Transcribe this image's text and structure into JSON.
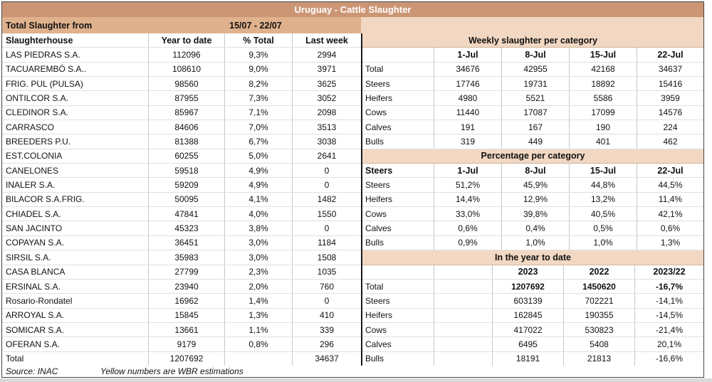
{
  "title": "Uruguay - Cattle Slaughter",
  "subheader": {
    "label": "Total Slaughter from",
    "period": "15/07 - 22/07"
  },
  "left_table": {
    "headers": [
      "Slaughterhouse",
      "Year to date",
      "% Total",
      "Last week"
    ],
    "rows": [
      {
        "name": "LAS PIEDRAS S.A.",
        "ytd": "112096",
        "pct": "9,3%",
        "last": "2994"
      },
      {
        "name": "TACUAREMBÓ S.A..",
        "ytd": "108610",
        "pct": "9,0%",
        "last": "3971"
      },
      {
        "name": "FRIG. PUL (PULSA)",
        "ytd": "98560",
        "pct": "8,2%",
        "last": "3625"
      },
      {
        "name": "ONTILCOR S.A.",
        "ytd": "87955",
        "pct": "7,3%",
        "last": "3052"
      },
      {
        "name": "CLEDINOR S.A.",
        "ytd": "85967",
        "pct": "7,1%",
        "last": "2098"
      },
      {
        "name": "CARRASCO",
        "ytd": "84606",
        "pct": "7,0%",
        "last": "3513"
      },
      {
        "name": "BREEDERS P.U.",
        "ytd": "81388",
        "pct": "6,7%",
        "last": "3038"
      },
      {
        "name": "EST.COLONIA",
        "ytd": "60255",
        "pct": "5,0%",
        "last": "2641"
      },
      {
        "name": "CANELONES",
        "ytd": "59518",
        "pct": "4,9%",
        "last": "0"
      },
      {
        "name": "INALER S.A.",
        "ytd": "59209",
        "pct": "4,9%",
        "last": "0"
      },
      {
        "name": "BILACOR S.A.FRIG.",
        "ytd": "50095",
        "pct": "4,1%",
        "last": "1482"
      },
      {
        "name": "CHIADEL S.A.",
        "ytd": "47841",
        "pct": "4,0%",
        "last": "1550"
      },
      {
        "name": "SAN JACINTO",
        "ytd": "45323",
        "pct": "3,8%",
        "last": "0"
      },
      {
        "name": "COPAYAN S.A.",
        "ytd": "36451",
        "pct": "3,0%",
        "last": "1184"
      },
      {
        "name": "SIRSIL S.A.",
        "ytd": "35983",
        "pct": "3,0%",
        "last": "1508"
      },
      {
        "name": "CASA BLANCA",
        "ytd": "27799",
        "pct": "2,3%",
        "last": "1035"
      },
      {
        "name": "ERSINAL S.A.",
        "ytd": "23940",
        "pct": "2,0%",
        "last": "760"
      },
      {
        "name": "Rosario-Rondatel",
        "ytd": "16962",
        "pct": "1,4%",
        "last": "0"
      },
      {
        "name": "ARROYAL S.A.",
        "ytd": "15845",
        "pct": "1,3%",
        "last": "410"
      },
      {
        "name": "SOMICAR S.A.",
        "ytd": "13661",
        "pct": "1,1%",
        "last": "339"
      },
      {
        "name": "OFERAN S.A.",
        "ytd": "9179",
        "pct": "0,8%",
        "last": "296"
      }
    ],
    "total": {
      "name": "Total",
      "ytd": "1207692",
      "pct": "",
      "last": "34637"
    }
  },
  "right_tables": {
    "weekly": {
      "title": "Weekly slaughter per category",
      "col_headers": [
        "",
        "1-Jul",
        "8-Jul",
        "15-Jul",
        "22-Jul"
      ],
      "rows": [
        {
          "label": "Total",
          "values": [
            "34676",
            "42955",
            "42168",
            "34637"
          ]
        },
        {
          "label": "Steers",
          "values": [
            "17746",
            "19731",
            "18892",
            "15416"
          ]
        },
        {
          "label": "Heifers",
          "values": [
            "4980",
            "5521",
            "5586",
            "3959"
          ]
        },
        {
          "label": "Cows",
          "values": [
            "11440",
            "17087",
            "17099",
            "14576"
          ]
        },
        {
          "label": "Calves",
          "values": [
            "191",
            "167",
            "190",
            "224"
          ]
        },
        {
          "label": "Bulls",
          "values": [
            "319",
            "449",
            "401",
            "462"
          ]
        }
      ]
    },
    "percentage": {
      "title": "Percentage per category",
      "col_headers": [
        "Steers",
        "1-Jul",
        "8-Jul",
        "15-Jul",
        "22-Jul"
      ],
      "rows": [
        {
          "label": "Steers",
          "values": [
            "51,2%",
            "45,9%",
            "44,8%",
            "44,5%"
          ]
        },
        {
          "label": "Heifers",
          "values": [
            "14,4%",
            "12,9%",
            "13,2%",
            "11,4%"
          ]
        },
        {
          "label": "Cows",
          "values": [
            "33,0%",
            "39,8%",
            "40,5%",
            "42,1%"
          ]
        },
        {
          "label": "Calves",
          "values": [
            "0,6%",
            "0,4%",
            "0,5%",
            "0,6%"
          ]
        },
        {
          "label": "Bulls",
          "values": [
            "0,9%",
            "1,0%",
            "1,0%",
            "1,3%"
          ]
        }
      ]
    },
    "year_to_date": {
      "title": "In the year to date",
      "col_headers": [
        "",
        "",
        "2023",
        "2022",
        "2023/22"
      ],
      "rows": [
        {
          "label": "Total",
          "values": [
            "1207692",
            "1450620",
            "-16,7%"
          ],
          "bold": true
        },
        {
          "label": "Steers",
          "values": [
            "603139",
            "702221",
            "-14,1%"
          ]
        },
        {
          "label": "Heifers",
          "values": [
            "162845",
            "190355",
            "-14,5%"
          ]
        },
        {
          "label": "Cows",
          "values": [
            "417022",
            "530823",
            "-21,4%"
          ]
        },
        {
          "label": "Calves",
          "values": [
            "6495",
            "5408",
            "20,1%"
          ]
        },
        {
          "label": "Bulls",
          "values": [
            "18191",
            "21813",
            "-16,6%"
          ]
        }
      ]
    }
  },
  "footer": {
    "source": "Source: INAC",
    "note": "Yellow numbers are WBR estimations"
  },
  "colors": {
    "title_bar": "#CC9675",
    "subheader_left": "#DFB18C",
    "section_header": "#F2D8C3"
  }
}
